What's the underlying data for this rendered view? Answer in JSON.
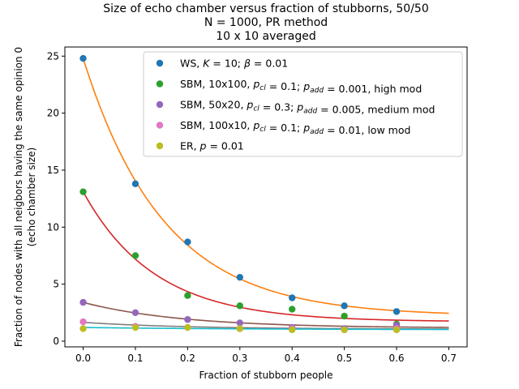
{
  "chart_data": {
    "type": "scatter",
    "title": [
      "Size of echo chamber versus fraction of stubborns, 50/50",
      "N = 1000, PR method",
      "10 x 10 averaged"
    ],
    "xlabel": "Fraction of stubborn people",
    "ylabel": [
      "Fraction of nodes with all neigbors having the same opinion 0",
      "(echo chamber size)"
    ],
    "xlim": [
      -0.035,
      0.735
    ],
    "ylim": [
      -0.5,
      25.8
    ],
    "xticks": [
      0.0,
      0.1,
      0.2,
      0.3,
      0.4,
      0.5,
      0.6,
      0.7
    ],
    "xtick_labels": [
      "0.0",
      "0.1",
      "0.2",
      "0.3",
      "0.4",
      "0.5",
      "0.6",
      "0.7"
    ],
    "yticks": [
      0,
      5,
      10,
      15,
      20,
      25
    ],
    "ytick_labels": [
      "0",
      "5",
      "10",
      "15",
      "20",
      "25"
    ],
    "grid": false,
    "legend_position": "top-right",
    "x": [
      0.0,
      0.1,
      0.2,
      0.3,
      0.4,
      0.5,
      0.6
    ],
    "series": [
      {
        "name": "WS, K = 10; β = 0.01",
        "color": "#1f77b4",
        "values": [
          24.8,
          13.8,
          8.7,
          5.6,
          3.8,
          3.1,
          2.6
        ],
        "fit_color": "#ff7f0e",
        "fit": {
          "a": 22.6,
          "b": 6.45,
          "c": 2.2
        }
      },
      {
        "name": "SBM, 10x100, p_cl = 0.1; p_add = 0.001, high mod",
        "color": "#2ca02c",
        "values": [
          13.1,
          7.5,
          4.0,
          3.1,
          2.8,
          2.2,
          1.5
        ],
        "fit_color": "#d62728",
        "fit": {
          "a": 11.4,
          "b": 7.3,
          "c": 1.7
        }
      },
      {
        "name": "SBM, 50x20, p_cl = 0.3; p_add = 0.005, medium mod",
        "color": "#9467bd",
        "values": [
          3.4,
          2.5,
          1.9,
          1.6,
          1.2,
          1.1,
          1.4
        ],
        "fit_color": "#8c564b",
        "fit": {
          "a": 2.25,
          "b": 5.3,
          "c": 1.15
        }
      },
      {
        "name": "SBM, 100x10, p_cl = 0.1; p_add = 0.01, low mod",
        "color": "#e377c2",
        "values": [
          1.7,
          1.3,
          1.2,
          1.1,
          1.1,
          1.0,
          1.1
        ],
        "fit_color": "#7f7f7f",
        "fit": {
          "a": 0.6,
          "b": 5.0,
          "c": 1.05
        }
      },
      {
        "name": "ER, p = 0.01",
        "color": "#bcbd22",
        "values": [
          1.1,
          1.2,
          1.2,
          1.1,
          1.0,
          1.0,
          1.0
        ],
        "fit_color": "#17becf",
        "fit": {
          "a": 0.2,
          "b": 3.0,
          "c": 1.0
        }
      }
    ]
  }
}
